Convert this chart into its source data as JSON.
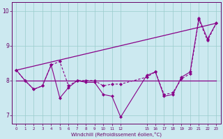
{
  "xlabel": "Windchill (Refroidissement éolien,°C)",
  "background_color": "#cce9f0",
  "line_color": "#880088",
  "grid_color": "#99cccc",
  "spine_color": "#660066",
  "xlim": [
    -0.5,
    23.5
  ],
  "ylim": [
    6.75,
    10.25
  ],
  "yticks": [
    7,
    8,
    9,
    10
  ],
  "xticks": [
    0,
    1,
    2,
    3,
    4,
    5,
    6,
    7,
    8,
    9,
    10,
    11,
    12,
    15,
    16,
    17,
    18,
    19,
    20,
    21,
    22,
    23
  ],
  "figsize": [
    3.2,
    2.0
  ],
  "dpi": 100,
  "line1_x": [
    0,
    1,
    2,
    3,
    4,
    5,
    6,
    7,
    8,
    9,
    10,
    11,
    12,
    15,
    16,
    17,
    18,
    19,
    20,
    21,
    22,
    23
  ],
  "line1_y": [
    8.3,
    8.0,
    7.75,
    7.85,
    8.45,
    7.5,
    7.8,
    8.0,
    7.95,
    7.95,
    7.6,
    7.55,
    6.95,
    8.15,
    8.25,
    7.55,
    7.6,
    8.1,
    8.25,
    9.8,
    9.2,
    9.65
  ],
  "line2_x": [
    0,
    23
  ],
  "line2_y": [
    8.0,
    8.0
  ],
  "line3_x": [
    0,
    23
  ],
  "line3_y": [
    8.3,
    9.65
  ],
  "line4_x": [
    0,
    1,
    2,
    3,
    4,
    5,
    6,
    7,
    8,
    9,
    10,
    11,
    12,
    15,
    16,
    17,
    18,
    19,
    20,
    21,
    22,
    23
  ],
  "line4_y": [
    8.3,
    8.0,
    7.75,
    7.85,
    8.45,
    8.55,
    7.85,
    8.0,
    8.0,
    8.0,
    7.85,
    7.9,
    7.9,
    8.1,
    8.25,
    7.6,
    7.65,
    8.05,
    8.2,
    9.75,
    9.15,
    9.65
  ]
}
